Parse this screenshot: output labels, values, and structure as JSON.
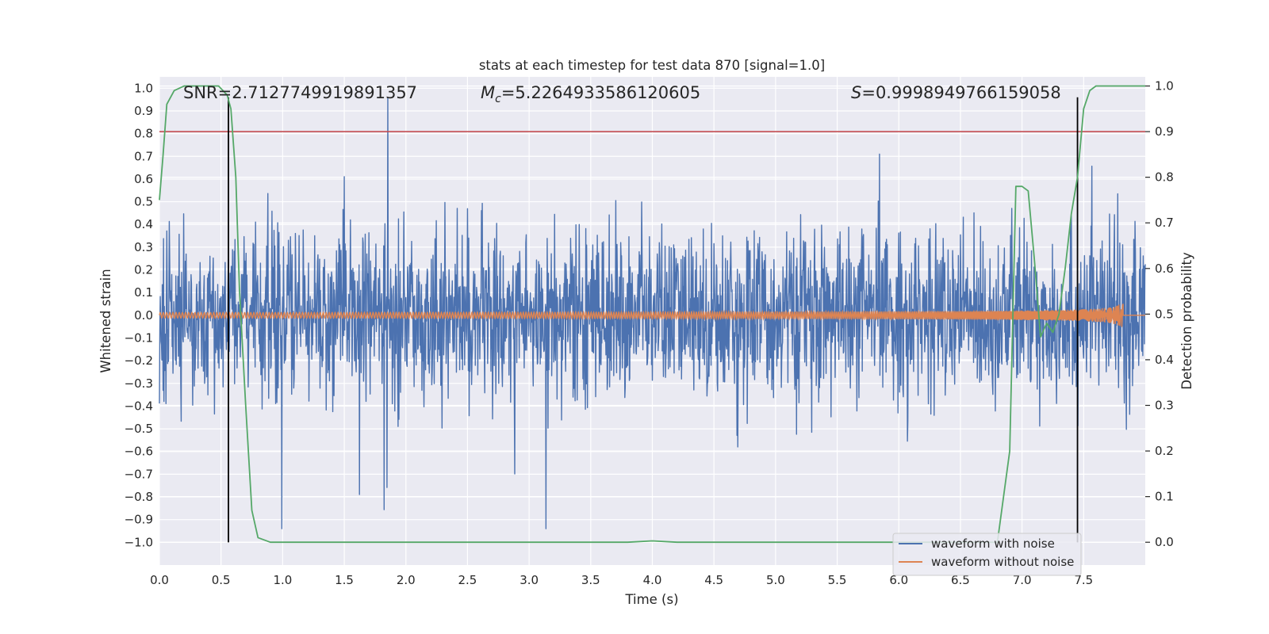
{
  "chart_data": {
    "type": "line",
    "title": "stats at each timestep for test data 870 [signal=1.0]",
    "xlabel": "Time (s)",
    "ylabel_left": "Whitened strain",
    "ylabel_right": "Detection probability",
    "xlim": [
      0.0,
      8.0
    ],
    "ylim_left": [
      -1.1,
      1.05
    ],
    "ylim_right": [
      -0.05,
      1.02
    ],
    "xticks": [
      0.0,
      0.5,
      1.0,
      1.5,
      2.0,
      2.5,
      3.0,
      3.5,
      4.0,
      4.5,
      5.0,
      5.5,
      6.0,
      6.5,
      7.0,
      7.5
    ],
    "xtick_labels": [
      "0.0",
      "0.5",
      "1.0",
      "1.5",
      "2.0",
      "2.5",
      "3.0",
      "3.5",
      "4.0",
      "4.5",
      "5.0",
      "5.5",
      "6.0",
      "6.5",
      "7.0",
      "7.5"
    ],
    "yticks_left": [
      1.0,
      0.9,
      0.8,
      0.7,
      0.6,
      0.5,
      0.4,
      0.3,
      0.2,
      0.1,
      0.0,
      -0.1,
      -0.2,
      -0.3,
      -0.4,
      -0.5,
      -0.6,
      -0.7,
      -0.8,
      -0.9,
      -1.0
    ],
    "ytick_labels_left": [
      "1.0",
      "0.9",
      "0.8",
      "0.7",
      "0.6",
      "0.5",
      "0.4",
      "0.3",
      "0.2",
      "0.1",
      "0.0",
      "−0.1",
      "−0.2",
      "−0.3",
      "−0.4",
      "−0.5",
      "−0.6",
      "−0.7",
      "−0.8",
      "−0.9",
      "−1.0"
    ],
    "yticks_right": [
      1.0,
      0.9,
      0.8,
      0.7,
      0.6,
      0.5,
      0.4,
      0.3,
      0.2,
      0.1,
      0.0
    ],
    "ytick_labels_right": [
      "1.0",
      "0.9",
      "0.8",
      "0.7",
      "0.6",
      "0.5",
      "0.4",
      "0.3",
      "0.2",
      "0.1",
      "0.0"
    ],
    "annotations": {
      "snr": "SNR=2.7127749919891357",
      "mc_symbol": "M",
      "mc_sub": "c",
      "mc_value": "=5.2264933586120605",
      "s_symbol": "S",
      "s_value": "=0.9998949766159058"
    },
    "series": [
      {
        "name": "waveform with noise",
        "color": "#4c72b0",
        "t_start": 0.0,
        "t_end": 8.0,
        "typical_amplitude": 0.18,
        "peak_max": 0.96,
        "peak_min": -0.94
      },
      {
        "name": "waveform without noise",
        "color": "#dd8452",
        "t_start": 0.0,
        "t_end": 7.82,
        "start_amplitude": 0.012,
        "end_amplitude": 0.06
      },
      {
        "name": "detection probability",
        "color": "#55a868",
        "axis": "right",
        "x": [
          0.0,
          0.03,
          0.06,
          0.12,
          0.2,
          0.3,
          0.4,
          0.48,
          0.55,
          0.58,
          0.62,
          0.65,
          0.7,
          0.75,
          0.8,
          0.9,
          1.5,
          2.0,
          3.0,
          3.8,
          4.0,
          4.2,
          5.0,
          6.0,
          6.5,
          6.8,
          6.85,
          6.9,
          6.95,
          7.0,
          7.05,
          7.1,
          7.15,
          7.2,
          7.25,
          7.3,
          7.35,
          7.4,
          7.45,
          7.5,
          7.55,
          7.6,
          7.7,
          8.0
        ],
        "y": [
          0.75,
          0.85,
          0.96,
          0.99,
          1.0,
          1.0,
          1.0,
          1.0,
          0.98,
          0.95,
          0.8,
          0.55,
          0.3,
          0.07,
          0.01,
          0.0,
          0.0,
          0.0,
          0.0,
          0.0,
          0.003,
          0.0,
          0.0,
          0.0,
          0.0,
          0.0,
          0.1,
          0.2,
          0.78,
          0.78,
          0.77,
          0.62,
          0.45,
          0.48,
          0.46,
          0.5,
          0.6,
          0.72,
          0.8,
          0.95,
          0.99,
          1.0,
          1.0,
          1.0
        ]
      }
    ],
    "threshold_line": {
      "value_right": 0.9,
      "color": "#c44e52"
    },
    "vertical_markers": {
      "x": [
        0.56,
        7.45
      ],
      "color": "#000000",
      "y_range_left": [
        -1.0,
        0.96
      ]
    },
    "legend": {
      "placement": "lower-right",
      "entries": [
        "waveform with noise",
        "waveform without noise"
      ]
    }
  }
}
